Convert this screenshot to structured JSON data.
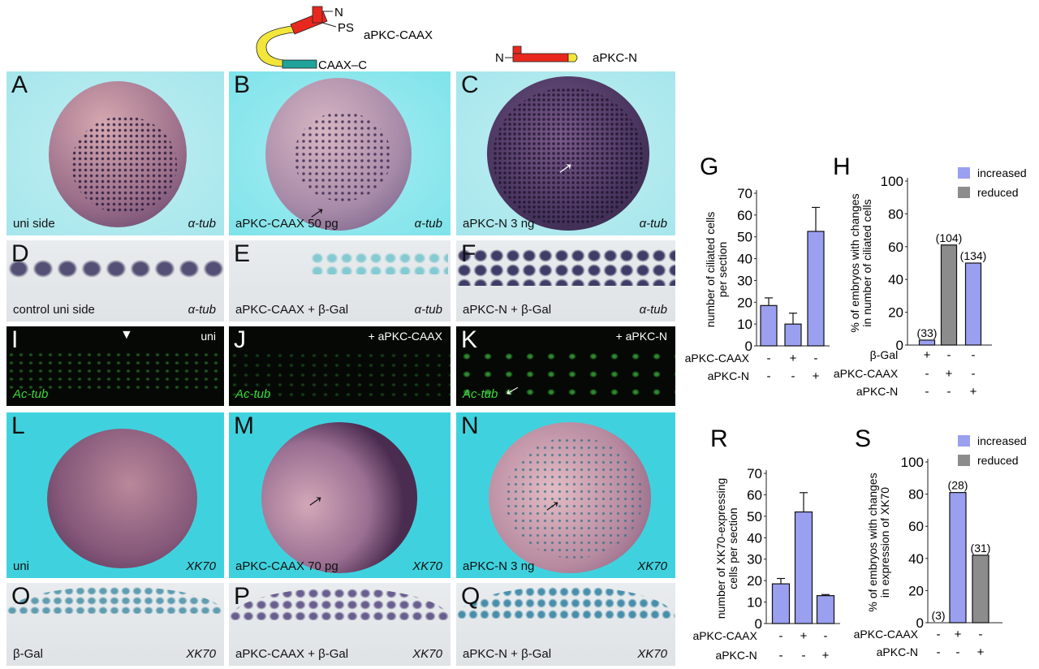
{
  "constructs": {
    "caax": {
      "label": "aPKC-CAAX",
      "n_term": "N",
      "ps": "PS",
      "caax_c": "CAAX–C"
    },
    "n": {
      "label": "aPKC-N",
      "n_term": "N"
    },
    "colors": {
      "kinase": "#e8281e",
      "hinge": "#f2e63a",
      "caax": "#1fa39a"
    }
  },
  "panels": [
    {
      "letter": "A",
      "left_label": "uni side",
      "right_label": "α-tub"
    },
    {
      "letter": "B",
      "left_label": "aPKC-CAAX 50 pg",
      "right_label": "α-tub"
    },
    {
      "letter": "C",
      "left_label": "aPKC-N 3 ng",
      "right_label": "α-tub"
    },
    {
      "letter": "D",
      "left_label": "control uni side",
      "right_label": "α-tub"
    },
    {
      "letter": "E",
      "left_label": "aPKC-CAAX + β-Gal",
      "right_label": "α-tub"
    },
    {
      "letter": "F",
      "left_label": "aPKC-N + β-Gal",
      "right_label": "α-tub"
    },
    {
      "letter": "I",
      "top_label": "uni",
      "left_label": "Ac-tub"
    },
    {
      "letter": "J",
      "top_label": "+ aPKC-CAAX",
      "left_label": "Ac-tub"
    },
    {
      "letter": "K",
      "top_label": "+ aPKC-N",
      "left_label": "Ac-tub"
    },
    {
      "letter": "L",
      "left_label": "uni",
      "right_label": "XK70"
    },
    {
      "letter": "M",
      "left_label": "aPKC-CAAX 70 pg",
      "right_label": "XK70"
    },
    {
      "letter": "N",
      "left_label": "aPKC-N 3 ng",
      "right_label": "XK70"
    },
    {
      "letter": "O",
      "left_label": "β-Gal",
      "right_label": "XK70"
    },
    {
      "letter": "P",
      "left_label": "aPKC-CAAX + β-Gal",
      "right_label": "XK70"
    },
    {
      "letter": "Q",
      "left_label": "aPKC-N + β-Gal",
      "right_label": "XK70"
    }
  ],
  "chart_data": [
    {
      "letter": "G",
      "type": "bar",
      "ylabel": [
        "number of ciliated cells",
        "per section"
      ],
      "ylim": [
        0,
        70
      ],
      "yticks": [
        0,
        10,
        20,
        30,
        40,
        50,
        60,
        70
      ],
      "conditions": [
        {
          "name": "aPKC-CAAX",
          "marks": [
            "-",
            "+",
            "-"
          ]
        },
        {
          "name": "aPKC-N",
          "marks": [
            "-",
            "-",
            "+"
          ]
        }
      ],
      "values": [
        18.5,
        10,
        52.5
      ],
      "errors": [
        3.5,
        5,
        11
      ],
      "colors": [
        "#9b9ff0",
        "#9b9ff0",
        "#9b9ff0"
      ],
      "bar_labels": []
    },
    {
      "letter": "H",
      "type": "bar",
      "ylabel": [
        "% of embryos with changes",
        "in number of ciliated cells"
      ],
      "ylim": [
        0,
        100
      ],
      "yticks": [
        0,
        20,
        40,
        60,
        80,
        100
      ],
      "conditions": [
        {
          "name": "β-Gal",
          "marks": [
            "+",
            "-",
            "-"
          ]
        },
        {
          "name": "aPKC-CAAX",
          "marks": [
            "-",
            "+",
            "-"
          ]
        },
        {
          "name": "aPKC-N",
          "marks": [
            "-",
            "-",
            "+"
          ]
        }
      ],
      "values": [
        3,
        61,
        50
      ],
      "colors": [
        "#9b9ff0",
        "#8c8c8c",
        "#9b9ff0"
      ],
      "bar_labels": [
        "(33)",
        "(104)",
        "(134)"
      ],
      "legend": [
        {
          "label": "increased",
          "color": "#9b9ff0"
        },
        {
          "label": "reduced",
          "color": "#8c8c8c"
        }
      ],
      "legend_position": "top-right"
    },
    {
      "letter": "R",
      "type": "bar",
      "ylabel": [
        "number of XK70-expressing",
        "cells per section"
      ],
      "ylim": [
        0,
        70
      ],
      "yticks": [
        0,
        10,
        20,
        30,
        40,
        50,
        60,
        70
      ],
      "conditions": [
        {
          "name": "aPKC-CAAX",
          "marks": [
            "-",
            "+",
            "-"
          ]
        },
        {
          "name": "aPKC-N",
          "marks": [
            "-",
            "-",
            "+"
          ]
        }
      ],
      "values": [
        18.5,
        52,
        13
      ],
      "errors": [
        2.5,
        9,
        0.5
      ],
      "colors": [
        "#9b9ff0",
        "#9b9ff0",
        "#9b9ff0"
      ],
      "bar_labels": []
    },
    {
      "letter": "S",
      "type": "bar",
      "ylabel": [
        "% of embryos with changes",
        "in expression of XK70"
      ],
      "ylim": [
        0,
        100
      ],
      "yticks": [
        0,
        20,
        40,
        60,
        80,
        100
      ],
      "conditions": [
        {
          "name": "aPKC-CAAX",
          "marks": [
            "-",
            "+",
            "-"
          ]
        },
        {
          "name": "aPKC-N",
          "marks": [
            "-",
            "-",
            "+"
          ]
        }
      ],
      "values": [
        0,
        81,
        42
      ],
      "colors": [
        "#9b9ff0",
        "#9b9ff0",
        "#8c8c8c"
      ],
      "bar_labels": [
        "(3)",
        "(28)",
        "(31)"
      ],
      "legend": [
        {
          "label": "increased",
          "color": "#9b9ff0"
        },
        {
          "label": "reduced",
          "color": "#8c8c8c"
        }
      ],
      "legend_position": "top-right"
    }
  ]
}
